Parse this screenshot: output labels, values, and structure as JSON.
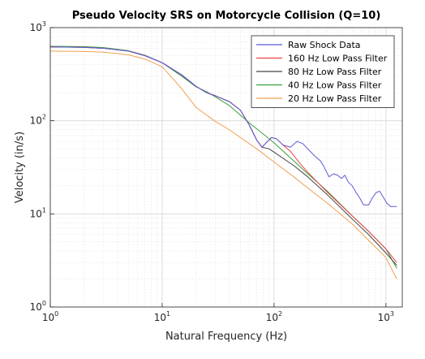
{
  "chart_data": {
    "type": "line",
    "title": "Pseudo Velocity SRS on Motorcycle Collision (Q=10)",
    "xlabel": "Natural Frequency (Hz)",
    "ylabel": "Velocity (in/s)",
    "xscale": "log",
    "yscale": "log",
    "xlim": [
      1,
      1400
    ],
    "ylim": [
      1,
      1000
    ],
    "grid": true,
    "legend_position": "top-right",
    "x_ticks": [
      {
        "base": "10",
        "exp": "0"
      },
      {
        "base": "10",
        "exp": "1"
      },
      {
        "base": "10",
        "exp": "2"
      },
      {
        "base": "10",
        "exp": "3"
      }
    ],
    "y_ticks": [
      {
        "base": "10",
        "exp": "0"
      },
      {
        "base": "10",
        "exp": "1"
      },
      {
        "base": "10",
        "exp": "2"
      },
      {
        "base": "10",
        "exp": "3"
      }
    ],
    "series": [
      {
        "name": "Raw Shock Data",
        "color": "#5b5bd6",
        "points": [
          [
            1,
            620
          ],
          [
            2,
            615
          ],
          [
            3,
            600
          ],
          [
            5,
            560
          ],
          [
            7,
            500
          ],
          [
            10,
            420
          ],
          [
            15,
            310
          ],
          [
            20,
            235
          ],
          [
            25,
            200
          ],
          [
            30,
            185
          ],
          [
            40,
            160
          ],
          [
            50,
            130
          ],
          [
            60,
            90
          ],
          [
            70,
            62
          ],
          [
            78,
            52
          ],
          [
            85,
            58
          ],
          [
            95,
            66
          ],
          [
            105,
            64
          ],
          [
            120,
            55
          ],
          [
            140,
            52
          ],
          [
            160,
            60
          ],
          [
            180,
            57
          ],
          [
            200,
            50
          ],
          [
            230,
            42
          ],
          [
            260,
            37
          ],
          [
            280,
            32
          ],
          [
            310,
            25
          ],
          [
            340,
            27
          ],
          [
            370,
            26
          ],
          [
            400,
            24
          ],
          [
            430,
            26
          ],
          [
            460,
            22
          ],
          [
            500,
            20
          ],
          [
            540,
            17
          ],
          [
            580,
            15
          ],
          [
            630,
            12.5
          ],
          [
            700,
            12.5
          ],
          [
            760,
            15
          ],
          [
            820,
            17
          ],
          [
            880,
            17.5
          ],
          [
            950,
            15
          ],
          [
            1020,
            13
          ],
          [
            1100,
            12
          ],
          [
            1250,
            12
          ]
        ]
      },
      {
        "name": "160 Hz Low Pass Filter",
        "color": "#e84545",
        "points": [
          [
            1,
            620
          ],
          [
            2,
            615
          ],
          [
            3,
            600
          ],
          [
            5,
            560
          ],
          [
            7,
            500
          ],
          [
            10,
            420
          ],
          [
            15,
            310
          ],
          [
            20,
            235
          ],
          [
            25,
            200
          ],
          [
            30,
            185
          ],
          [
            40,
            160
          ],
          [
            50,
            130
          ],
          [
            60,
            90
          ],
          [
            70,
            62
          ],
          [
            78,
            52
          ],
          [
            85,
            58
          ],
          [
            95,
            66
          ],
          [
            105,
            64
          ],
          [
            120,
            55
          ],
          [
            140,
            47
          ],
          [
            170,
            35
          ],
          [
            200,
            28
          ],
          [
            300,
            17
          ],
          [
            500,
            9.5
          ],
          [
            700,
            6.5
          ],
          [
            1000,
            4.2
          ],
          [
            1250,
            3
          ]
        ]
      },
      {
        "name": "80 Hz Low Pass Filter",
        "color": "#444444",
        "points": [
          [
            1,
            620
          ],
          [
            2,
            615
          ],
          [
            3,
            600
          ],
          [
            5,
            560
          ],
          [
            7,
            500
          ],
          [
            10,
            420
          ],
          [
            15,
            310
          ],
          [
            20,
            235
          ],
          [
            25,
            200
          ],
          [
            30,
            185
          ],
          [
            40,
            160
          ],
          [
            50,
            130
          ],
          [
            60,
            90
          ],
          [
            70,
            62
          ],
          [
            78,
            52
          ],
          [
            90,
            50
          ],
          [
            100,
            46
          ],
          [
            150,
            33
          ],
          [
            200,
            25
          ],
          [
            300,
            16
          ],
          [
            500,
            8.8
          ],
          [
            700,
            6
          ],
          [
            1000,
            3.8
          ],
          [
            1250,
            2.8
          ]
        ]
      },
      {
        "name": "40 Hz Low Pass Filter",
        "color": "#3b9e3b",
        "points": [
          [
            1,
            630
          ],
          [
            2,
            625
          ],
          [
            3,
            610
          ],
          [
            5,
            565
          ],
          [
            7,
            505
          ],
          [
            10,
            420
          ],
          [
            15,
            300
          ],
          [
            20,
            232
          ],
          [
            25,
            205
          ],
          [
            30,
            180
          ],
          [
            40,
            145
          ],
          [
            50,
            115
          ],
          [
            60,
            95
          ],
          [
            80,
            72
          ],
          [
            100,
            58
          ],
          [
            150,
            37
          ],
          [
            200,
            27
          ],
          [
            300,
            17.5
          ],
          [
            500,
            9.5
          ],
          [
            700,
            6.5
          ],
          [
            1000,
            4.2
          ],
          [
            1250,
            2.6
          ]
        ]
      },
      {
        "name": "20 Hz Low Pass Filter",
        "color": "#f0a050",
        "points": [
          [
            1,
            560
          ],
          [
            2,
            555
          ],
          [
            3,
            545
          ],
          [
            5,
            510
          ],
          [
            7,
            460
          ],
          [
            10,
            380
          ],
          [
            15,
            220
          ],
          [
            20,
            140
          ],
          [
            25,
            115
          ],
          [
            30,
            98
          ],
          [
            40,
            80
          ],
          [
            50,
            66
          ],
          [
            70,
            50
          ],
          [
            100,
            36
          ],
          [
            150,
            25
          ],
          [
            200,
            19
          ],
          [
            300,
            13
          ],
          [
            500,
            7.8
          ],
          [
            700,
            5.2
          ],
          [
            1000,
            3.4
          ],
          [
            1250,
            2
          ]
        ]
      }
    ]
  }
}
